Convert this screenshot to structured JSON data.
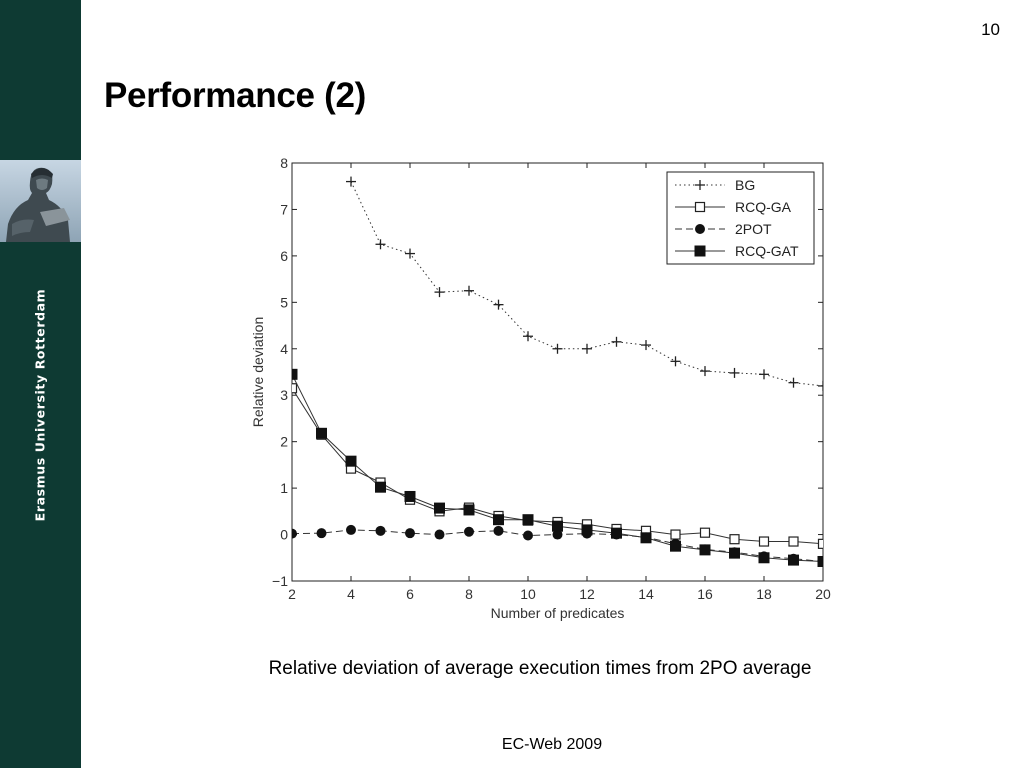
{
  "slide": {
    "number": "10",
    "title": "Performance (2)",
    "caption": "Relative deviation of average execution times from 2PO average",
    "footer": "EC-Web 2009"
  },
  "sidebar": {
    "institution": "Erasmus University Rotterdam",
    "color": "#0e3a33"
  },
  "chart_data": {
    "type": "line",
    "xlabel": "Number of predicates",
    "ylabel": "Relative deviation",
    "xlim": [
      2,
      20
    ],
    "ylim": [
      -1,
      8
    ],
    "xticks": [
      2,
      4,
      6,
      8,
      10,
      12,
      14,
      16,
      18,
      20
    ],
    "yticks": [
      -1,
      0,
      1,
      2,
      3,
      4,
      5,
      6,
      7,
      8
    ],
    "grid": false,
    "legend_position": "top-right",
    "series": [
      {
        "name": "BG",
        "line": "dotted",
        "marker": "plus",
        "x": [
          4,
          5,
          6,
          7,
          8,
          9,
          10,
          11,
          12,
          13,
          14,
          15,
          16,
          17,
          18,
          19,
          20
        ],
        "values": [
          7.6,
          6.25,
          6.05,
          5.22,
          5.25,
          4.95,
          4.27,
          4.0,
          4.0,
          4.15,
          4.08,
          3.73,
          3.52,
          3.48,
          3.45,
          3.27,
          3.2
        ]
      },
      {
        "name": "RCQ-GA",
        "line": "solid",
        "marker": "open-square",
        "x": [
          2,
          3,
          4,
          5,
          6,
          7,
          8,
          9,
          10,
          11,
          12,
          13,
          14,
          15,
          16,
          17,
          18,
          19,
          20
        ],
        "values": [
          3.15,
          2.15,
          1.42,
          1.12,
          0.75,
          0.5,
          0.58,
          0.4,
          0.3,
          0.27,
          0.22,
          0.12,
          0.08,
          0.0,
          0.04,
          -0.1,
          -0.15,
          -0.15,
          -0.2
        ]
      },
      {
        "name": "2POT",
        "line": "dashed",
        "marker": "filled-circle",
        "x": [
          2,
          3,
          4,
          5,
          6,
          7,
          8,
          9,
          10,
          11,
          12,
          13,
          14,
          15,
          16,
          17,
          18,
          19,
          20
        ],
        "values": [
          0.02,
          0.03,
          0.1,
          0.08,
          0.03,
          0.0,
          0.06,
          0.08,
          -0.02,
          0.0,
          0.02,
          0.0,
          -0.06,
          -0.2,
          -0.32,
          -0.38,
          -0.47,
          -0.52,
          -0.58
        ]
      },
      {
        "name": "RCQ-GAT",
        "line": "solid",
        "marker": "filled-square",
        "x": [
          2,
          3,
          4,
          5,
          6,
          7,
          8,
          9,
          10,
          11,
          12,
          13,
          14,
          15,
          16,
          17,
          18,
          19,
          20
        ],
        "values": [
          3.45,
          2.18,
          1.58,
          1.02,
          0.82,
          0.57,
          0.53,
          0.32,
          0.32,
          0.18,
          0.1,
          0.03,
          -0.07,
          -0.25,
          -0.33,
          -0.4,
          -0.5,
          -0.55,
          -0.58
        ]
      }
    ]
  }
}
